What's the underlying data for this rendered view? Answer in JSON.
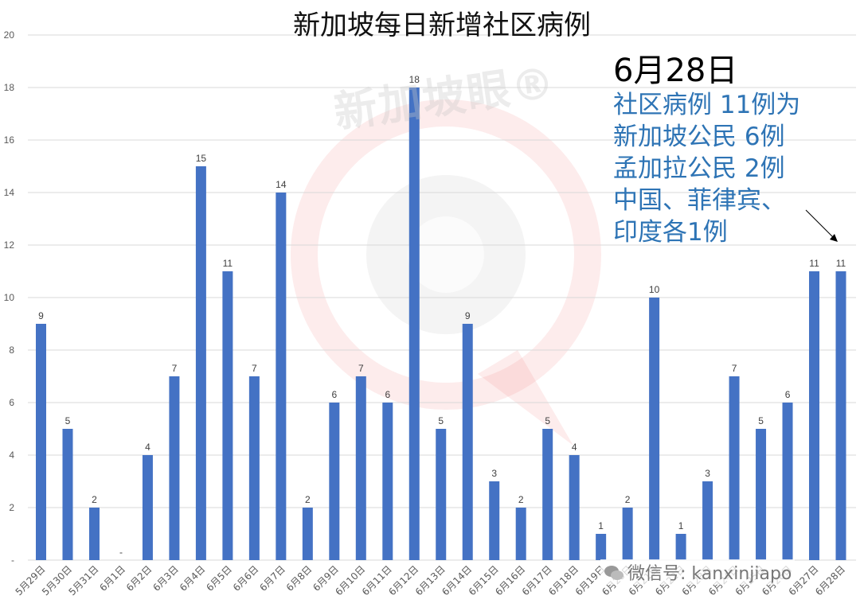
{
  "chart_data": {
    "type": "bar",
    "title": "新加坡每日新增社区病例",
    "categories": [
      "5月29日",
      "5月30日",
      "5月31日",
      "6月1日",
      "6月2日",
      "6月3日",
      "6月4日",
      "6月5日",
      "6月6日",
      "6月7日",
      "6月8日",
      "6月9日",
      "6月10日",
      "6月11日",
      "6月12日",
      "6月13日",
      "6月14日",
      "6月15日",
      "6月16日",
      "6月17日",
      "6月18日",
      "6月19日",
      "6月20日",
      "6月21日",
      "6月22日",
      "6月23日",
      "6月24日",
      "6月25日",
      "6月26日",
      "6月27日",
      "6月28日"
    ],
    "values": [
      9,
      5,
      2,
      0,
      4,
      7,
      15,
      11,
      7,
      14,
      2,
      6,
      7,
      6,
      18,
      5,
      9,
      3,
      2,
      5,
      4,
      1,
      2,
      10,
      1,
      3,
      7,
      5,
      6,
      11,
      11
    ],
    "data_labels": [
      "9",
      "5",
      "2",
      "-",
      "4",
      "7",
      "15",
      "11",
      "7",
      "14",
      "2",
      "6",
      "7",
      "6",
      "18",
      "5",
      "9",
      "3",
      "2",
      "5",
      "4",
      "1",
      "2",
      "10",
      "1",
      "3",
      "7",
      "5",
      "6",
      "11",
      "11"
    ],
    "yticks": [
      "-",
      "2",
      "4",
      "6",
      "8",
      "10",
      "12",
      "14",
      "16",
      "18",
      "20"
    ],
    "ylim": [
      0,
      20
    ],
    "grid": true,
    "bar_color": "#4472c4",
    "annotation": {
      "date": "6月28日",
      "lines": [
        "社区病例 11例为",
        "新加坡公民 6例",
        "孟加拉公民 2例",
        "中国、菲律宾、",
        "印度各1例"
      ],
      "color": "#2e74b5",
      "arrow_target": "6月28日"
    }
  },
  "watermark": {
    "text": "新加坡眼®",
    "wechat": "微信号: kanxinjiapo"
  }
}
